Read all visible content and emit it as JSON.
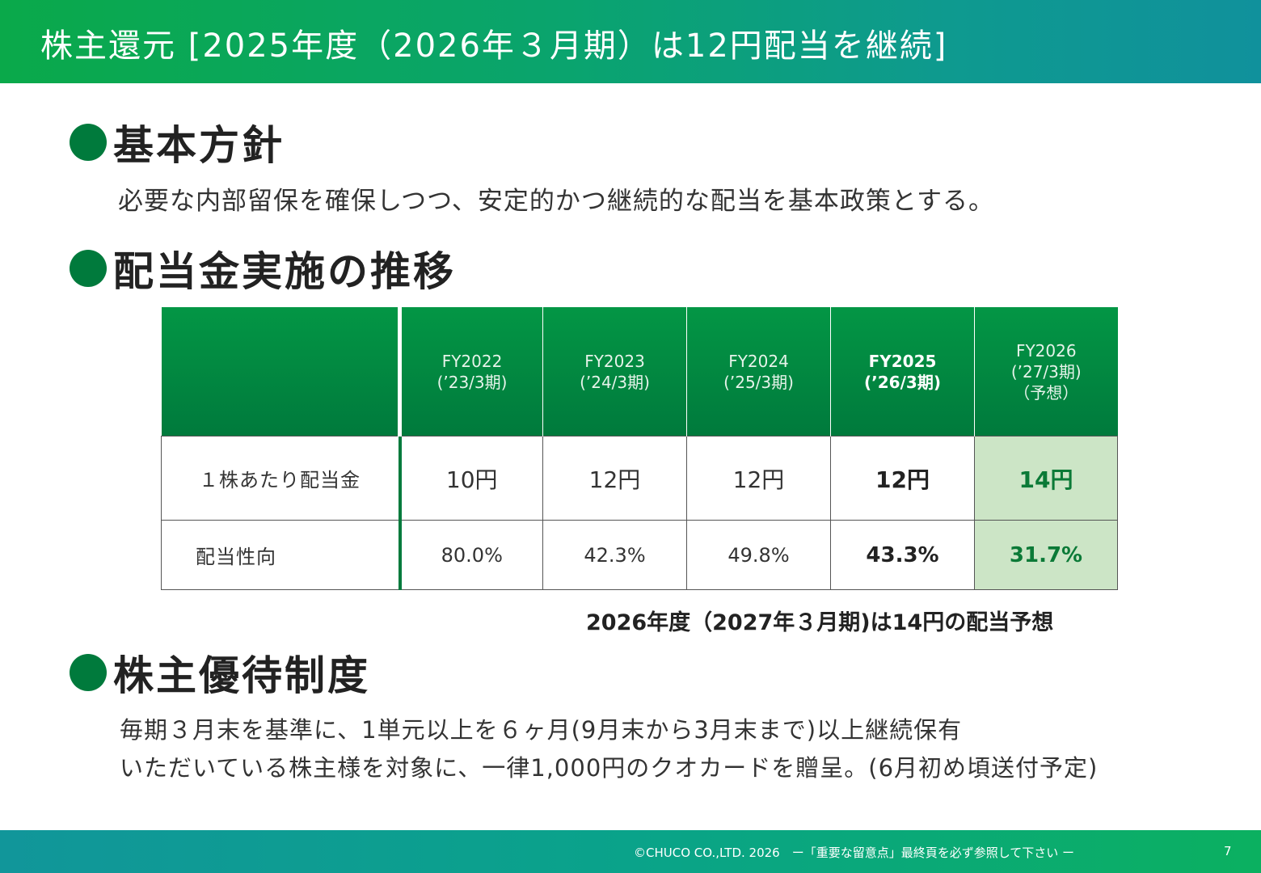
{
  "header": {
    "title": "株主還元 [2025年度（2026年３月期）は12円配当を継続]"
  },
  "sections": {
    "policy": {
      "heading": "基本方針",
      "text": "必要な内部留保を確保しつつ、安定的かつ継続的な配当を基本政策とする。"
    },
    "dividends": {
      "heading": "配当金実施の推移",
      "columns": [
        {
          "fy": "FY2022",
          "period": "(’23/3期)",
          "note": "",
          "highlight": false
        },
        {
          "fy": "FY2023",
          "period": "(’24/3期)",
          "note": "",
          "highlight": false
        },
        {
          "fy": "FY2024",
          "period": "(’25/3期)",
          "note": "",
          "highlight": false
        },
        {
          "fy": "FY2025",
          "period": "(’26/3期)",
          "note": "",
          "highlight": true
        },
        {
          "fy": "FY2026",
          "period": "(’27/3期)",
          "note": "（予想）",
          "highlight": false
        }
      ],
      "rows": [
        {
          "label": "１株あたり配当金",
          "values": [
            "10円",
            "12円",
            "12円",
            "12円",
            "14円"
          ]
        },
        {
          "label": "配当性向",
          "values": [
            "80.0%",
            "42.3%",
            "49.8%",
            "43.3%",
            "31.7%"
          ]
        }
      ],
      "note": "2026年度（2027年３月期)は14円の配当予想"
    },
    "benefits": {
      "heading": "株主優待制度",
      "line1": "毎期３月末を基準に、1単元以上を６ヶ月(9月末から3月末まで)以上継続保有",
      "line2": "いただいている株主様を対象に、一律1,000円のクオカードを贈呈。(6月初め頃送付予定)"
    }
  },
  "footer": {
    "text": "©CHUCO CO.,LTD. 2026　ー「重要な留意点」最終頁を必ず参照して下さい ー",
    "page": "7"
  },
  "colors": {
    "brand_green": "#007a3c",
    "forecast_cell": "#cce5c6",
    "forecast_text": "#0b7a37"
  }
}
